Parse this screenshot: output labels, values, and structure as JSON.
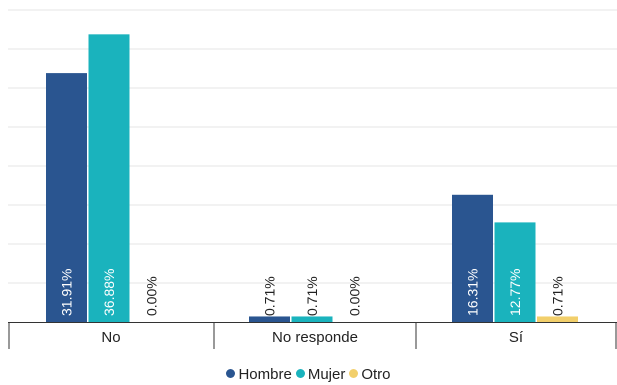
{
  "chart_data": {
    "type": "bar",
    "categories": [
      "No",
      "No responde",
      "Sí"
    ],
    "series": [
      {
        "name": "Hombre",
        "color": "#2a5590",
        "values": [
          31.91,
          0.71,
          16.31
        ],
        "labels": [
          "31.91%",
          "0.71%",
          "16.31%"
        ]
      },
      {
        "name": "Mujer",
        "color": "#1ab3bd",
        "values": [
          36.88,
          0.71,
          12.77
        ],
        "labels": [
          "36.88%",
          "0.71%",
          "12.77%"
        ]
      },
      {
        "name": "Otro",
        "color": "#f2cf6b",
        "values": [
          0.0,
          0.0,
          0.71
        ],
        "labels": [
          "0.00%",
          "0.00%",
          "0.71%"
        ]
      }
    ],
    "ylim": [
      0,
      40
    ],
    "grid": true,
    "legend_position": "bottom"
  }
}
